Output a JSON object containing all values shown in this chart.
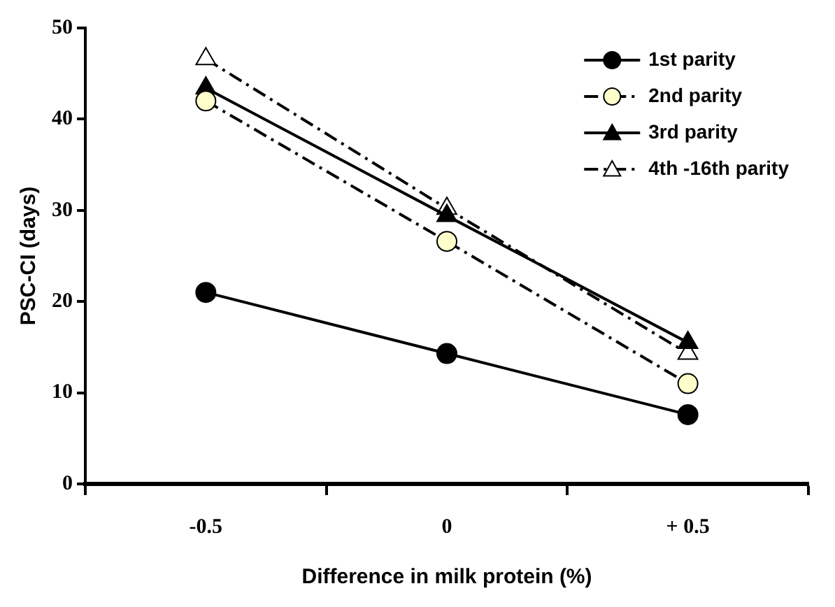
{
  "chart_data": {
    "type": "line",
    "xlabel": "Difference in milk protein (%)",
    "ylabel": "PSC-CI (days)",
    "categories": [
      "-0.5",
      "0",
      "+ 0.5"
    ],
    "series": [
      {
        "name": "1st parity",
        "color": "#000000",
        "values": [
          21.0,
          14.3,
          7.6
        ],
        "marker": "circle",
        "line_style": "solid"
      },
      {
        "name": "2nd parity",
        "color": "#ffffcc",
        "values": [
          42.0,
          26.6,
          11.0
        ],
        "marker": "circle",
        "line_style": "dashed"
      },
      {
        "name": "3rd parity",
        "color": "#000000",
        "values": [
          43.4,
          29.4,
          15.5
        ],
        "marker": "triangle",
        "line_style": "solid"
      },
      {
        "name": "4th -16th parity",
        "color": "#ffffff",
        "values": [
          46.6,
          30.2,
          14.3
        ],
        "marker": "triangle",
        "line_style": "dashed"
      }
    ],
    "ylim": [
      0,
      50
    ],
    "yticks": [
      0,
      10,
      20,
      30,
      40,
      50
    ],
    "grid": false,
    "legend": "top right"
  }
}
